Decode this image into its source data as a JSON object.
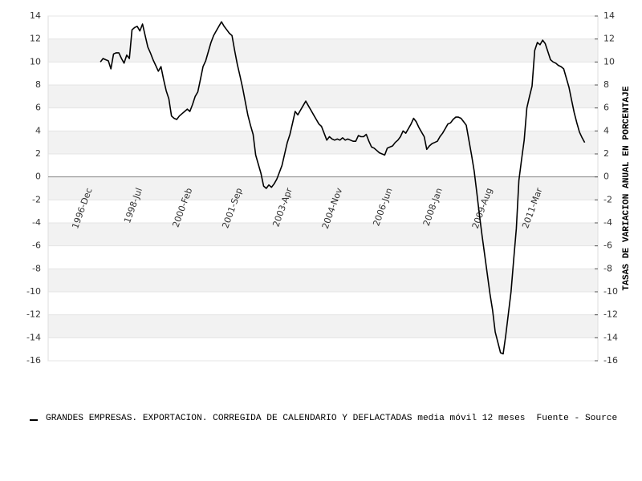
{
  "chart_data": {
    "type": "line",
    "y_label": "TASAS DE VARIACION ANUAL EN PORCENTAJE",
    "source": "Fuente - Source",
    "categories": [
      "1996-Dec",
      null,
      null,
      null,
      null,
      null,
      null,
      null,
      null,
      null,
      null,
      null,
      null,
      null,
      null,
      null,
      null,
      null,
      null,
      "1998-Jul",
      null,
      null,
      null,
      null,
      null,
      null,
      null,
      null,
      null,
      null,
      null,
      null,
      null,
      null,
      null,
      null,
      null,
      null,
      "2000-Feb",
      null,
      null,
      null,
      null,
      null,
      null,
      null,
      null,
      null,
      null,
      null,
      null,
      null,
      null,
      null,
      null,
      null,
      null,
      "2001-Sep",
      null,
      null,
      null,
      null,
      null,
      null,
      null,
      null,
      null,
      null,
      null,
      null,
      null,
      null,
      null,
      null,
      null,
      null,
      "2003-Apr",
      null,
      null,
      null,
      null,
      null,
      null,
      null,
      null,
      null,
      null,
      null,
      null,
      null,
      null,
      null,
      null,
      null,
      null,
      "2004-Nov",
      null,
      null,
      null,
      null,
      null,
      null,
      null,
      null,
      null,
      null,
      null,
      null,
      null,
      null,
      null,
      null,
      null,
      null,
      "2006-Jun",
      null,
      null,
      null,
      null,
      null,
      null,
      null,
      null,
      null,
      null,
      null,
      null,
      null,
      null,
      null,
      null,
      null,
      null,
      "2008-Jan",
      null,
      null,
      null,
      null,
      null,
      null,
      null,
      null,
      null,
      null,
      null,
      null,
      null,
      null,
      null,
      null,
      null,
      null,
      "2009-Aug",
      null,
      null,
      null,
      null,
      null,
      null,
      null,
      null,
      null,
      null,
      null,
      null,
      null,
      null,
      null,
      null,
      null,
      null,
      "2011-Mar",
      null,
      null,
      null,
      null,
      null,
      null,
      null,
      null,
      null,
      null,
      null,
      null,
      null,
      null,
      null,
      null,
      null
    ],
    "series": [
      {
        "name": "GRANDES EMPRESAS. EXPORTACION. CORREGIDA DE CALENDARIO Y DEFLACTADAS media móvil 12 meses",
        "color": "#000000",
        "values": [
          null,
          null,
          null,
          null,
          10.0,
          10.3,
          10.2,
          10.1,
          9.4,
          10.7,
          10.8,
          10.8,
          10.3,
          9.9,
          10.6,
          10.3,
          12.8,
          13.0,
          13.1,
          12.7,
          13.3,
          12.3,
          11.3,
          10.8,
          10.2,
          9.7,
          9.2,
          9.6,
          8.5,
          7.5,
          6.8,
          5.3,
          5.1,
          5.0,
          5.3,
          5.5,
          5.7,
          5.9,
          5.7,
          6.3,
          7.0,
          7.4,
          8.5,
          9.6,
          10.1,
          10.9,
          11.7,
          12.3,
          12.7,
          13.1,
          13.5,
          13.1,
          12.8,
          12.5,
          12.3,
          11.0,
          9.8,
          8.8,
          7.8,
          6.6,
          5.4,
          4.5,
          3.7,
          1.9,
          1.1,
          0.3,
          -0.8,
          -1.0,
          -0.7,
          -0.9,
          -0.6,
          -0.2,
          0.4,
          1.0,
          2.0,
          3.0,
          3.7,
          4.7,
          5.7,
          5.4,
          5.8,
          6.2,
          6.6,
          6.2,
          5.8,
          5.4,
          5.0,
          4.6,
          4.4,
          3.8,
          3.2,
          3.5,
          3.3,
          3.2,
          3.3,
          3.2,
          3.4,
          3.2,
          3.3,
          3.2,
          3.1,
          3.1,
          3.6,
          3.5,
          3.5,
          3.7,
          3.1,
          2.6,
          2.5,
          2.3,
          2.1,
          2.0,
          1.9,
          2.5,
          2.6,
          2.7,
          3.0,
          3.2,
          3.5,
          4.0,
          3.8,
          4.2,
          4.6,
          5.1,
          4.8,
          4.3,
          3.9,
          3.5,
          2.4,
          2.7,
          2.9,
          3.0,
          3.1,
          3.5,
          3.8,
          4.2,
          4.6,
          4.7,
          5.0,
          5.2,
          5.2,
          5.1,
          4.8,
          4.5,
          3.2,
          1.9,
          0.5,
          -1.4,
          -3.3,
          -5.1,
          -6.8,
          -8.5,
          -10.2,
          -11.6,
          -13.5,
          -14.4,
          -15.3,
          -15.4,
          -13.8,
          -11.9,
          -10.0,
          -7.2,
          -4.5,
          -0.3,
          1.5,
          3.2,
          6.0,
          7.0,
          7.9,
          11.0,
          11.7,
          11.5,
          11.9,
          11.6,
          10.9,
          10.2,
          10.0,
          9.9,
          9.7,
          9.6,
          9.4,
          8.6,
          7.8,
          6.7,
          5.6,
          4.7,
          3.9,
          3.4,
          3.0
        ]
      }
    ],
    "ylim": [
      -16,
      14
    ],
    "yticks": [
      -16,
      -14,
      -12,
      -10,
      -8,
      -6,
      -4,
      -2,
      0,
      2,
      4,
      6,
      8,
      10,
      12,
      14
    ],
    "y2lim": [
      -16,
      14
    ],
    "y2ticks": [
      -16,
      -14,
      -12,
      -10,
      -8,
      -6,
      -4,
      -2,
      0,
      2,
      4,
      6,
      8,
      10,
      12,
      14
    ],
    "grid": true
  }
}
